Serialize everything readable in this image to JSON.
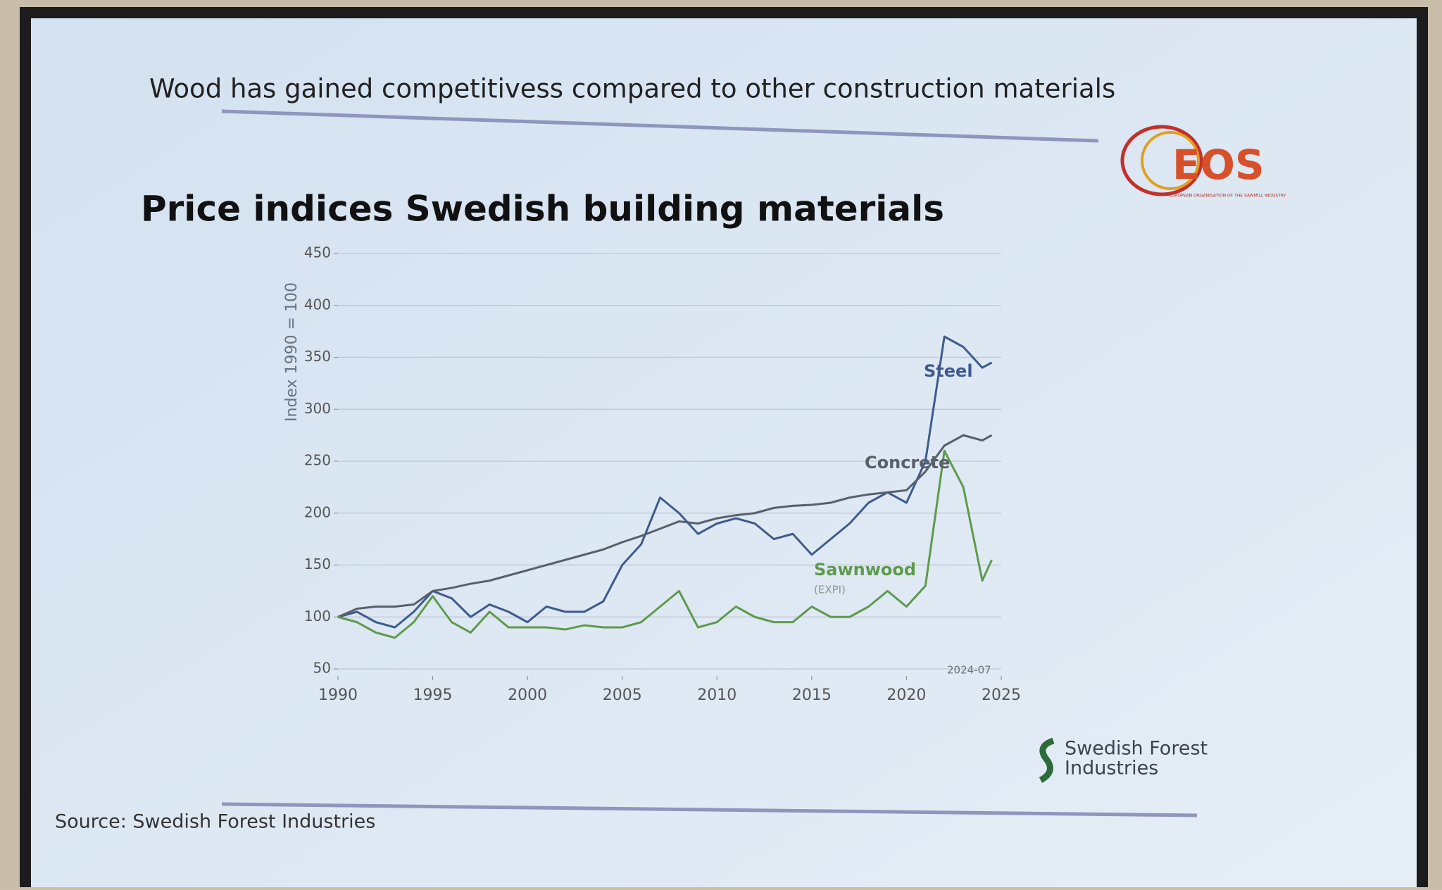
{
  "header": "Wood has gained competitivess compared to other construction materials",
  "logo_eos": {
    "name": "EOS",
    "tagline": "EUROPEAN ORGANISATION OF THE SAWMILL INDUSTRY"
  },
  "logo_sfi": [
    "Swedish Forest",
    "Industries"
  ],
  "source": "Source: Swedish Forest Industries",
  "chart_data": {
    "type": "line",
    "title": "Price indices Swedish building materials",
    "y_label": "Index 1990 = 100",
    "annotation": "2024-07",
    "x": [
      1990,
      1991,
      1992,
      1993,
      1994,
      1995,
      1996,
      1997,
      1998,
      1999,
      2000,
      2001,
      2002,
      2003,
      2004,
      2005,
      2006,
      2007,
      2008,
      2009,
      2010,
      2011,
      2012,
      2013,
      2014,
      2015,
      2016,
      2017,
      2018,
      2019,
      2020,
      2021,
      2022,
      2023,
      2024,
      2024.5
    ],
    "series": [
      {
        "name": "Steel",
        "color": "#3f5b8e",
        "values": [
          100,
          105,
          95,
          90,
          105,
          125,
          118,
          100,
          112,
          105,
          95,
          110,
          105,
          105,
          115,
          150,
          170,
          215,
          200,
          180,
          190,
          195,
          190,
          175,
          180,
          160,
          175,
          190,
          210,
          220,
          210,
          250,
          370,
          360,
          340,
          345
        ]
      },
      {
        "name": "Concrete",
        "color": "#58606c",
        "values": [
          100,
          108,
          110,
          110,
          112,
          125,
          128,
          132,
          135,
          140,
          145,
          150,
          155,
          160,
          165,
          172,
          178,
          185,
          192,
          190,
          195,
          198,
          200,
          205,
          207,
          208,
          210,
          215,
          218,
          220,
          222,
          240,
          265,
          275,
          270,
          275
        ]
      },
      {
        "name": "Sawnwood",
        "sublabel": "(EXPI)",
        "color": "#5e9a4c",
        "values": [
          100,
          95,
          85,
          80,
          95,
          120,
          95,
          85,
          105,
          90,
          90,
          90,
          88,
          92,
          90,
          90,
          95,
          110,
          125,
          90,
          95,
          110,
          100,
          95,
          95,
          110,
          100,
          100,
          110,
          125,
          110,
          130,
          260,
          225,
          135,
          155
        ]
      }
    ],
    "xlim": [
      1990,
      2025
    ],
    "ylim": [
      50,
      450
    ],
    "xticks": [
      1990,
      1995,
      2000,
      2005,
      2010,
      2015,
      2020,
      2025
    ],
    "yticks": [
      50,
      100,
      150,
      200,
      250,
      300,
      350,
      400,
      450
    ],
    "grid": true
  }
}
